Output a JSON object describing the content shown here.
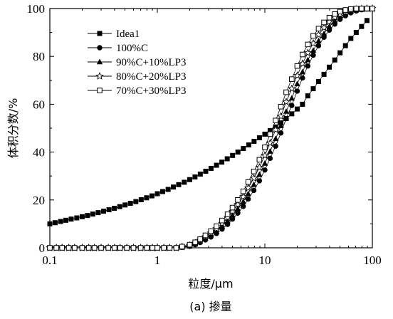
{
  "chart_data": {
    "type": "scatter",
    "title": "",
    "xlabel": "粒度/μm",
    "ylabel": "体积分数/%",
    "caption": "(a) 掺量",
    "xscale": "log",
    "xlim": [
      0.1,
      100
    ],
    "ylim": [
      0,
      100
    ],
    "xticks": [
      "0.1",
      "1",
      "10",
      "100"
    ],
    "yticks": [
      "0",
      "20",
      "40",
      "60",
      "80",
      "100"
    ],
    "legend_position": "top-left",
    "grid": false,
    "series": [
      {
        "name": "Idea1",
        "marker": "square-filled",
        "x": [
          0.1,
          0.112,
          0.126,
          0.141,
          0.158,
          0.178,
          0.2,
          0.224,
          0.251,
          0.282,
          0.316,
          0.355,
          0.398,
          0.447,
          0.501,
          0.562,
          0.631,
          0.708,
          0.794,
          0.891,
          1.0,
          1.12,
          1.26,
          1.41,
          1.58,
          1.78,
          2.0,
          2.24,
          2.51,
          2.82,
          3.16,
          3.55,
          3.98,
          4.47,
          5.01,
          5.62,
          6.31,
          7.08,
          7.94,
          8.91,
          10.0,
          11.2,
          12.6,
          14.1,
          15.8,
          17.8,
          20.0,
          22.4,
          25.1,
          28.2,
          31.6,
          35.5,
          39.8,
          44.7,
          50.1,
          56.2,
          63.1,
          70.8,
          79.4,
          89.1
        ],
        "y": [
          10.0,
          10.5,
          11.0,
          11.5,
          12.0,
          12.5,
          13.0,
          13.5,
          14.1,
          14.7,
          15.3,
          15.9,
          16.5,
          17.2,
          17.9,
          18.6,
          19.3,
          20.1,
          20.9,
          21.7,
          22.6,
          23.5,
          24.4,
          25.4,
          26.4,
          27.4,
          28.5,
          29.6,
          30.8,
          32.0,
          33.2,
          34.5,
          35.8,
          37.2,
          38.6,
          40.0,
          41.5,
          43.0,
          44.5,
          46.0,
          47.5,
          49.0,
          50.5,
          52.2,
          54.0,
          56.0,
          58.0,
          60.0,
          63.5,
          66.5,
          69.5,
          72.5,
          75.5,
          78.5,
          81.5,
          84.5,
          87.5,
          90.0,
          92.5,
          95.0
        ]
      },
      {
        "name": "100%C",
        "marker": "circle-filled",
        "x": [
          0.1,
          0.115,
          0.13,
          0.15,
          0.17,
          0.2,
          0.23,
          0.26,
          0.3,
          0.35,
          0.4,
          0.45,
          0.52,
          0.6,
          0.7,
          0.8,
          0.9,
          1.0,
          1.15,
          1.3,
          1.5,
          1.7,
          2.0,
          2.25,
          2.5,
          2.8,
          3.15,
          3.55,
          4.0,
          4.5,
          5.0,
          5.6,
          6.3,
          7.0,
          7.9,
          8.9,
          10.0,
          11.2,
          12.6,
          14.1,
          15.8,
          17.8,
          20.0,
          22.4,
          25.1,
          28.2,
          31.6,
          35.5,
          39.8,
          44.7,
          50.1,
          56.2,
          63.1,
          70.8,
          79.4,
          89.1,
          100
        ],
        "y": [
          0,
          0,
          0,
          0,
          0,
          0,
          0,
          0,
          0,
          0,
          0,
          0,
          0,
          0,
          0,
          0,
          0,
          0,
          0,
          0,
          0,
          0.2,
          0.6,
          1.3,
          2.2,
          3.3,
          4.5,
          6.0,
          7.8,
          9.8,
          12.0,
          14.5,
          17.3,
          20.4,
          24.0,
          28.0,
          32.5,
          37.4,
          42.5,
          48.0,
          54.0,
          59.5,
          65.5,
          71.0,
          76.0,
          80.5,
          84.5,
          88.0,
          91.0,
          93.5,
          95.5,
          97.0,
          98.2,
          99.0,
          99.5,
          99.8,
          100
        ]
      },
      {
        "name": "90%C+10%LP3",
        "marker": "triangle-filled",
        "x": [
          0.1,
          0.115,
          0.13,
          0.15,
          0.17,
          0.2,
          0.23,
          0.26,
          0.3,
          0.35,
          0.4,
          0.45,
          0.52,
          0.6,
          0.7,
          0.8,
          0.9,
          1.0,
          1.15,
          1.3,
          1.5,
          1.7,
          2.0,
          2.25,
          2.5,
          2.8,
          3.15,
          3.55,
          4.0,
          4.5,
          5.0,
          5.6,
          6.3,
          7.0,
          7.9,
          8.9,
          10.0,
          11.2,
          12.6,
          14.1,
          15.8,
          17.8,
          20.0,
          22.4,
          25.1,
          28.2,
          31.6,
          35.5,
          39.8,
          44.7,
          50.1,
          56.2,
          63.1,
          70.8,
          79.4,
          89.1,
          100
        ],
        "y": [
          0,
          0,
          0,
          0,
          0,
          0,
          0,
          0,
          0,
          0,
          0,
          0,
          0,
          0,
          0,
          0,
          0,
          0,
          0,
          0,
          0,
          0.3,
          0.8,
          1.6,
          2.7,
          4.0,
          5.4,
          7.0,
          9.0,
          11.2,
          13.6,
          16.3,
          19.3,
          22.6,
          26.4,
          30.6,
          35.3,
          40.3,
          45.6,
          51.0,
          57.0,
          62.5,
          68.5,
          73.5,
          78.5,
          82.5,
          86.5,
          89.5,
          92.5,
          94.8,
          96.5,
          97.8,
          98.8,
          99.4,
          99.7,
          99.9,
          100
        ]
      },
      {
        "name": "80%C+20%LP3",
        "marker": "star-open",
        "x": [
          0.1,
          0.115,
          0.13,
          0.15,
          0.17,
          0.2,
          0.23,
          0.26,
          0.3,
          0.35,
          0.4,
          0.45,
          0.52,
          0.6,
          0.7,
          0.8,
          0.9,
          1.0,
          1.15,
          1.3,
          1.5,
          1.7,
          2.0,
          2.25,
          2.5,
          2.8,
          3.15,
          3.55,
          4.0,
          4.5,
          5.0,
          5.6,
          6.3,
          7.0,
          7.9,
          8.9,
          10.0,
          11.2,
          12.6,
          14.1,
          15.8,
          17.8,
          20.0,
          22.4,
          25.1,
          28.2,
          31.6,
          35.5,
          39.8,
          44.7,
          50.1,
          56.2,
          63.1,
          70.8,
          79.4,
          89.1,
          100
        ],
        "y": [
          0,
          0,
          0,
          0,
          0,
          0,
          0,
          0,
          0,
          0,
          0,
          0,
          0,
          0,
          0,
          0,
          0,
          0,
          0,
          0,
          0,
          0.4,
          1.0,
          1.9,
          3.1,
          4.6,
          6.2,
          8.0,
          10.2,
          12.6,
          15.2,
          18.1,
          21.4,
          25.0,
          29.1,
          33.6,
          38.6,
          43.8,
          49.4,
          55.0,
          61.0,
          66.5,
          72.0,
          77.0,
          81.5,
          85.5,
          89.0,
          92.0,
          94.5,
          96.3,
          97.6,
          98.6,
          99.3,
          99.7,
          99.9,
          100,
          100
        ]
      },
      {
        "name": "70%C+30%LP3",
        "marker": "square-open",
        "x": [
          0.1,
          0.115,
          0.13,
          0.15,
          0.17,
          0.2,
          0.23,
          0.26,
          0.3,
          0.35,
          0.4,
          0.45,
          0.52,
          0.6,
          0.7,
          0.8,
          0.9,
          1.0,
          1.15,
          1.3,
          1.5,
          1.7,
          2.0,
          2.25,
          2.5,
          2.8,
          3.15,
          3.55,
          4.0,
          4.5,
          5.0,
          5.6,
          6.3,
          7.0,
          7.9,
          8.9,
          10.0,
          11.2,
          12.6,
          14.1,
          15.8,
          17.8,
          20.0,
          22.4,
          25.1,
          28.2,
          31.6,
          35.5,
          39.8,
          44.7,
          50.1,
          56.2,
          63.1,
          70.8,
          79.4,
          89.1,
          100
        ],
        "y": [
          0,
          0,
          0,
          0,
          0,
          0,
          0,
          0,
          0,
          0,
          0,
          0,
          0,
          0,
          0,
          0,
          0,
          0,
          0,
          0,
          0,
          0.5,
          1.3,
          2.3,
          3.6,
          5.2,
          7.0,
          9.0,
          11.4,
          14.0,
          16.8,
          20.0,
          23.6,
          27.5,
          31.9,
          36.8,
          42.0,
          47.5,
          53.2,
          59.0,
          65.0,
          70.5,
          76.0,
          80.8,
          85.0,
          88.6,
          91.6,
          94.2,
          96.2,
          97.7,
          98.7,
          99.4,
          99.8,
          100,
          100,
          100,
          100
        ]
      }
    ]
  }
}
